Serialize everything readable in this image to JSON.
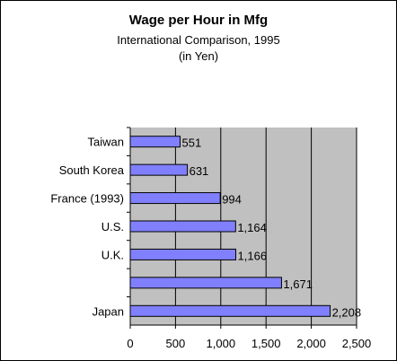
{
  "chart_data": {
    "type": "bar",
    "orientation": "horizontal",
    "title": "Wage per Hour in Mfg",
    "subtitle": "International Comparison, 1995",
    "unit_label": "(in Yen)",
    "categories": [
      "Taiwan",
      "South Korea",
      "France (1993)",
      "U.S.",
      "U.K.",
      "",
      "Japan"
    ],
    "values": [
      551,
      631,
      994,
      1164,
      1166,
      1671,
      2208
    ],
    "value_labels": [
      "551",
      "631",
      "994",
      "1,164",
      "1,166",
      "1,671",
      "2,208"
    ],
    "xlim": [
      0,
      2500
    ],
    "x_ticks": [
      0,
      500,
      1000,
      1500,
      2000,
      2500
    ],
    "x_tick_labels": [
      "0",
      "500",
      "1,000",
      "1,500",
      "2,000",
      "2,500"
    ],
    "grid": "vertical",
    "legend": "none",
    "colors": {
      "bar_fill": "#8080ff",
      "bar_stroke": "#000000",
      "plot_background": "#c0c0c0",
      "gridline": "#000000"
    }
  }
}
